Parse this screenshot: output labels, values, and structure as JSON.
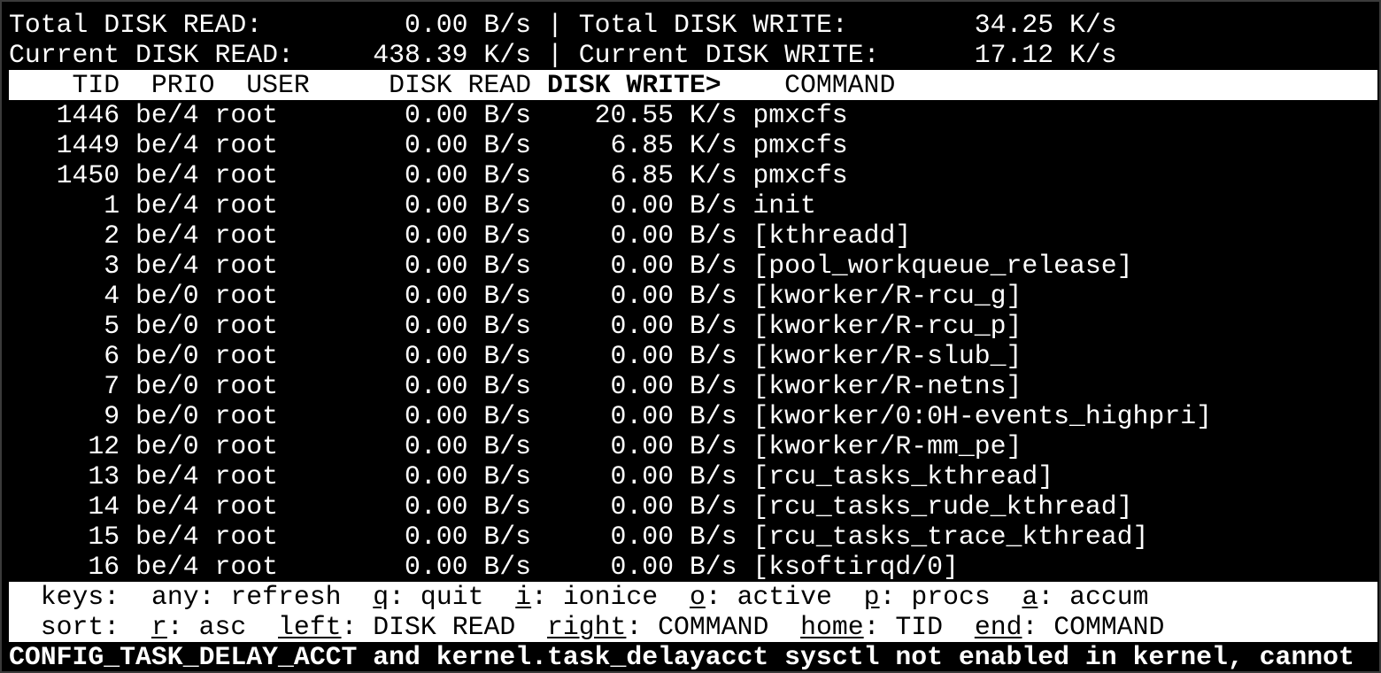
{
  "summary": {
    "total_read_label": "Total DISK READ:",
    "total_read": "0.00 B/s",
    "total_write_label": "Total DISK WRITE:",
    "total_write": "34.25 K/s",
    "current_read_label": "Current DISK READ:",
    "current_read": "438.39 K/s",
    "current_write_label": "Current DISK WRITE:",
    "current_write": "17.12 K/s",
    "separator": "|"
  },
  "columns": {
    "tid": "TID",
    "prio": "PRIO",
    "user": "USER",
    "read": "DISK READ",
    "write": "DISK WRITE>",
    "command": "COMMAND"
  },
  "rows": [
    {
      "tid": "1446",
      "prio": "be/4",
      "user": "root",
      "read": "0.00 B/s",
      "write": "20.55 K/s",
      "command": "pmxcfs"
    },
    {
      "tid": "1449",
      "prio": "be/4",
      "user": "root",
      "read": "0.00 B/s",
      "write": "6.85 K/s",
      "command": "pmxcfs"
    },
    {
      "tid": "1450",
      "prio": "be/4",
      "user": "root",
      "read": "0.00 B/s",
      "write": "6.85 K/s",
      "command": "pmxcfs"
    },
    {
      "tid": "1",
      "prio": "be/4",
      "user": "root",
      "read": "0.00 B/s",
      "write": "0.00 B/s",
      "command": "init"
    },
    {
      "tid": "2",
      "prio": "be/4",
      "user": "root",
      "read": "0.00 B/s",
      "write": "0.00 B/s",
      "command": "[kthreadd]"
    },
    {
      "tid": "3",
      "prio": "be/4",
      "user": "root",
      "read": "0.00 B/s",
      "write": "0.00 B/s",
      "command": "[pool_workqueue_release]"
    },
    {
      "tid": "4",
      "prio": "be/0",
      "user": "root",
      "read": "0.00 B/s",
      "write": "0.00 B/s",
      "command": "[kworker/R-rcu_g]"
    },
    {
      "tid": "5",
      "prio": "be/0",
      "user": "root",
      "read": "0.00 B/s",
      "write": "0.00 B/s",
      "command": "[kworker/R-rcu_p]"
    },
    {
      "tid": "6",
      "prio": "be/0",
      "user": "root",
      "read": "0.00 B/s",
      "write": "0.00 B/s",
      "command": "[kworker/R-slub_]"
    },
    {
      "tid": "7",
      "prio": "be/0",
      "user": "root",
      "read": "0.00 B/s",
      "write": "0.00 B/s",
      "command": "[kworker/R-netns]"
    },
    {
      "tid": "9",
      "prio": "be/0",
      "user": "root",
      "read": "0.00 B/s",
      "write": "0.00 B/s",
      "command": "[kworker/0:0H-events_highpri]"
    },
    {
      "tid": "12",
      "prio": "be/0",
      "user": "root",
      "read": "0.00 B/s",
      "write": "0.00 B/s",
      "command": "[kworker/R-mm_pe]"
    },
    {
      "tid": "13",
      "prio": "be/4",
      "user": "root",
      "read": "0.00 B/s",
      "write": "0.00 B/s",
      "command": "[rcu_tasks_kthread]"
    },
    {
      "tid": "14",
      "prio": "be/4",
      "user": "root",
      "read": "0.00 B/s",
      "write": "0.00 B/s",
      "command": "[rcu_tasks_rude_kthread]"
    },
    {
      "tid": "15",
      "prio": "be/4",
      "user": "root",
      "read": "0.00 B/s",
      "write": "0.00 B/s",
      "command": "[rcu_tasks_trace_kthread]"
    },
    {
      "tid": "16",
      "prio": "be/4",
      "user": "root",
      "read": "0.00 B/s",
      "write": "0.00 B/s",
      "command": "[ksoftirqd/0]"
    }
  ],
  "keys": {
    "label": "keys:",
    "items": [
      {
        "key": "",
        "desc": "any: refresh"
      },
      {
        "key": "q",
        "desc": ": quit"
      },
      {
        "key": "i",
        "desc": ": ionice"
      },
      {
        "key": "o",
        "desc": ": active"
      },
      {
        "key": "p",
        "desc": ": procs"
      },
      {
        "key": "a",
        "desc": ": accum"
      }
    ]
  },
  "sort": {
    "label": "sort:",
    "items": [
      {
        "key": "r",
        "desc": ": asc"
      },
      {
        "key": "left",
        "desc": ": DISK READ"
      },
      {
        "key": "right",
        "desc": ": COMMAND"
      },
      {
        "key": "home",
        "desc": ": TID"
      },
      {
        "key": "end",
        "desc": ": COMMAND"
      }
    ]
  },
  "status_message": "CONFIG_TASK_DELAY_ACCT and kernel.task_delayacct sysctl not enabled in kernel, cannot"
}
